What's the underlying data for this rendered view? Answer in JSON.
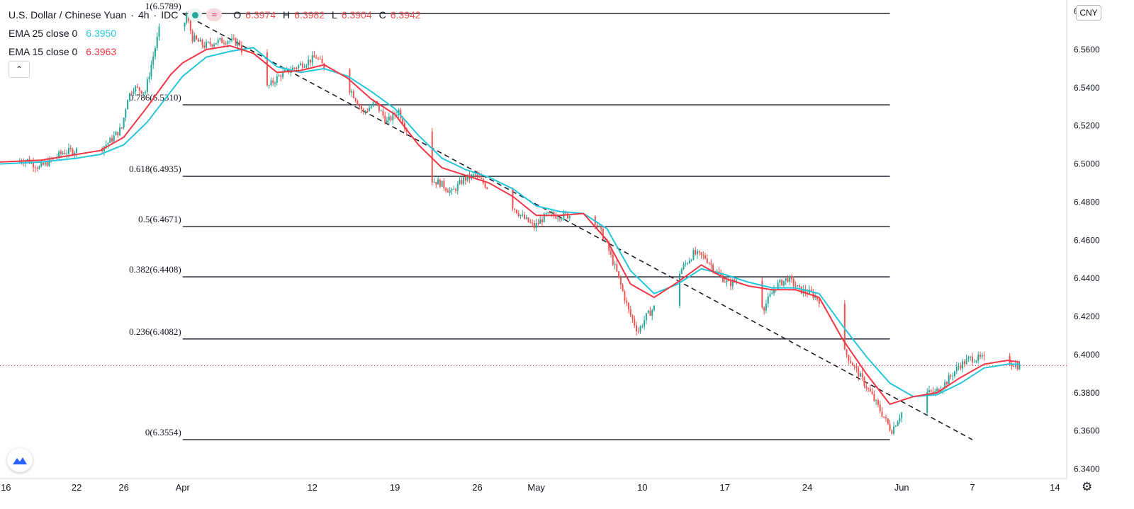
{
  "legend": {
    "symbol": "U.S. Dollar / Chinese Yuan",
    "interval": "4h",
    "exchange": "IDC",
    "separator": "·",
    "ohlc": [
      {
        "label": "O",
        "value": "6.3974"
      },
      {
        "label": "H",
        "value": "6.3982"
      },
      {
        "label": "L",
        "value": "6.3904"
      },
      {
        "label": "C",
        "value": "6.3942"
      }
    ],
    "ema25": {
      "name": "EMA 25 close 0",
      "value": "6.3950",
      "color": "#26c6da"
    },
    "ema15": {
      "name": "EMA 15 close 0",
      "value": "6.3963",
      "color": "#f23645"
    }
  },
  "collapse_glyph": "⌃",
  "currency": "CNY",
  "colors": {
    "up": "#26a69a",
    "down": "#ef5350",
    "grid_line": "#131722",
    "price_line": "#f23645"
  },
  "icons": {
    "logo": "tradingview-logo-icon",
    "settings": "gear-icon"
  },
  "chart_data": {
    "type": "candlestick",
    "y_range": [
      6.335,
      6.583
    ],
    "x_range_days": [
      -15.5,
      75
    ],
    "y_ticks": [
      "6.5800",
      "6.5600",
      "6.5400",
      "6.5200",
      "6.5000",
      "6.4800",
      "6.4600",
      "6.4400",
      "6.4200",
      "6.4000",
      "6.3800",
      "6.3600",
      "6.3400"
    ],
    "x_ticks": [
      {
        "label": "16",
        "day": -15
      },
      {
        "label": "22",
        "day": -9
      },
      {
        "label": "26",
        "day": -5
      },
      {
        "label": "Apr",
        "day": 0
      },
      {
        "label": "12",
        "day": 11
      },
      {
        "label": "19",
        "day": 18
      },
      {
        "label": "26",
        "day": 25
      },
      {
        "label": "May",
        "day": 30
      },
      {
        "label": "10",
        "day": 39
      },
      {
        "label": "17",
        "day": 46
      },
      {
        "label": "24",
        "day": 53
      },
      {
        "label": "Jun",
        "day": 61
      },
      {
        "label": "7",
        "day": 67
      },
      {
        "label": "14",
        "day": 74
      }
    ],
    "current_price": 6.3942,
    "fib_start_day": 0,
    "fib_end_day": 60,
    "fib_levels": [
      {
        "label": "1(6.5789)",
        "ratio": 1,
        "price": 6.5789
      },
      {
        "label": "0.786(6.5310)",
        "ratio": 0.786,
        "price": 6.531
      },
      {
        "label": "0.618(6.4935)",
        "ratio": 0.618,
        "price": 6.4935
      },
      {
        "label": "0.5(6.4671)",
        "ratio": 0.5,
        "price": 6.4671
      },
      {
        "label": "0.382(6.4408)",
        "ratio": 0.382,
        "price": 6.4408
      },
      {
        "label": "0.236(6.4082)",
        "ratio": 0.236,
        "price": 6.4082
      },
      {
        "label": "0(6.3554)",
        "ratio": 0,
        "price": 6.3554
      }
    ],
    "trend_line": {
      "start": {
        "day": 0,
        "price": 6.5789
      },
      "end": {
        "day": 67,
        "price": 6.3554
      }
    },
    "price_path": [
      [
        -15.5,
        6.501
      ],
      [
        -13,
        6.502
      ],
      [
        -12,
        6.498
      ],
      [
        -10,
        6.506
      ],
      [
        -8,
        6.508
      ],
      [
        -7,
        6.507
      ],
      [
        -6,
        6.512
      ],
      [
        -5,
        6.519
      ],
      [
        -4.5,
        6.535
      ],
      [
        -4,
        6.54
      ],
      [
        -3,
        6.538
      ],
      [
        -2.5,
        6.552
      ],
      [
        -1.8,
        6.571
      ],
      [
        -1,
        6.568
      ],
      [
        -0.7,
        6.56
      ],
      [
        0,
        6.567
      ],
      [
        0.5,
        6.578
      ],
      [
        1,
        6.566
      ],
      [
        2,
        6.562
      ],
      [
        3,
        6.564
      ],
      [
        4,
        6.565
      ],
      [
        5,
        6.563
      ],
      [
        6,
        6.544
      ],
      [
        6.8,
        6.537
      ],
      [
        7.5,
        6.541
      ],
      [
        8.5,
        6.547
      ],
      [
        9.5,
        6.55
      ],
      [
        10.5,
        6.553
      ],
      [
        11.5,
        6.556
      ],
      [
        12.5,
        6.548
      ],
      [
        13.5,
        6.545
      ],
      [
        14.5,
        6.538
      ],
      [
        15.5,
        6.527
      ],
      [
        16.5,
        6.532
      ],
      [
        17.5,
        6.522
      ],
      [
        18.5,
        6.528
      ],
      [
        19.5,
        6.513
      ],
      [
        20.5,
        6.497
      ],
      [
        21,
        6.492
      ],
      [
        22,
        6.49
      ],
      [
        23,
        6.485
      ],
      [
        24,
        6.492
      ],
      [
        25,
        6.494
      ],
      [
        26,
        6.488
      ],
      [
        27,
        6.484
      ],
      [
        28,
        6.479
      ],
      [
        29,
        6.472
      ],
      [
        30,
        6.467
      ],
      [
        31,
        6.473
      ],
      [
        32,
        6.473
      ],
      [
        33,
        6.473
      ],
      [
        34,
        6.474
      ],
      [
        34.5,
        6.477
      ],
      [
        35,
        6.472
      ],
      [
        36,
        6.46
      ],
      [
        37,
        6.443
      ],
      [
        38,
        6.423
      ],
      [
        38.8,
        6.412
      ],
      [
        39.5,
        6.42
      ],
      [
        40.5,
        6.427
      ],
      [
        41.5,
        6.434
      ],
      [
        42.5,
        6.445
      ],
      [
        43.5,
        6.453
      ],
      [
        44.5,
        6.451
      ],
      [
        45.5,
        6.443
      ],
      [
        46.5,
        6.437
      ],
      [
        47.5,
        6.44
      ],
      [
        48.5,
        6.432
      ],
      [
        49.5,
        6.425
      ],
      [
        50.5,
        6.436
      ],
      [
        51.5,
        6.44
      ],
      [
        52.5,
        6.434
      ],
      [
        53.5,
        6.432
      ],
      [
        54.5,
        6.427
      ],
      [
        55.5,
        6.406
      ],
      [
        56.5,
        6.4
      ],
      [
        57.5,
        6.39
      ],
      [
        58.5,
        6.38
      ],
      [
        59.5,
        6.369
      ],
      [
        60.3,
        6.36
      ],
      [
        61,
        6.368
      ],
      [
        62,
        6.377
      ],
      [
        63,
        6.38
      ],
      [
        64,
        6.38
      ],
      [
        65,
        6.386
      ],
      [
        66,
        6.394
      ],
      [
        67,
        6.398
      ],
      [
        68,
        6.398
      ],
      [
        69,
        6.395
      ],
      [
        70,
        6.397
      ],
      [
        71,
        6.3942
      ]
    ],
    "ema25_path": [
      [
        -15.5,
        6.5
      ],
      [
        -12,
        6.501
      ],
      [
        -9,
        6.503
      ],
      [
        -7,
        6.505
      ],
      [
        -5,
        6.51
      ],
      [
        -3,
        6.522
      ],
      [
        -1,
        6.538
      ],
      [
        0,
        6.546
      ],
      [
        2,
        6.556
      ],
      [
        4,
        6.559
      ],
      [
        6,
        6.561
      ],
      [
        8,
        6.551
      ],
      [
        10,
        6.548
      ],
      [
        12,
        6.55
      ],
      [
        14,
        6.546
      ],
      [
        16,
        6.538
      ],
      [
        18,
        6.529
      ],
      [
        20,
        6.515
      ],
      [
        22,
        6.503
      ],
      [
        24,
        6.497
      ],
      [
        26,
        6.493
      ],
      [
        28,
        6.487
      ],
      [
        30,
        6.478
      ],
      [
        32,
        6.475
      ],
      [
        34,
        6.474
      ],
      [
        36,
        6.466
      ],
      [
        38,
        6.444
      ],
      [
        40,
        6.432
      ],
      [
        42,
        6.437
      ],
      [
        44,
        6.445
      ],
      [
        46,
        6.442
      ],
      [
        48,
        6.438
      ],
      [
        50,
        6.435
      ],
      [
        52,
        6.435
      ],
      [
        54,
        6.432
      ],
      [
        56,
        6.415
      ],
      [
        58,
        6.399
      ],
      [
        60,
        6.385
      ],
      [
        62,
        6.378
      ],
      [
        64,
        6.379
      ],
      [
        66,
        6.385
      ],
      [
        68,
        6.393
      ],
      [
        70,
        6.395
      ],
      [
        71,
        6.395
      ]
    ],
    "ema15_path": [
      [
        -15.5,
        6.501
      ],
      [
        -12,
        6.502
      ],
      [
        -9,
        6.505
      ],
      [
        -7,
        6.507
      ],
      [
        -5,
        6.514
      ],
      [
        -3,
        6.53
      ],
      [
        -1,
        6.547
      ],
      [
        0,
        6.553
      ],
      [
        2,
        6.56
      ],
      [
        4,
        6.562
      ],
      [
        6,
        6.558
      ],
      [
        8,
        6.548
      ],
      [
        10,
        6.549
      ],
      [
        12,
        6.552
      ],
      [
        14,
        6.545
      ],
      [
        16,
        6.534
      ],
      [
        18,
        6.526
      ],
      [
        20,
        6.51
      ],
      [
        22,
        6.498
      ],
      [
        24,
        6.494
      ],
      [
        26,
        6.49
      ],
      [
        28,
        6.483
      ],
      [
        30,
        6.473
      ],
      [
        32,
        6.473
      ],
      [
        34,
        6.474
      ],
      [
        36,
        6.46
      ],
      [
        38,
        6.437
      ],
      [
        40,
        6.43
      ],
      [
        42,
        6.438
      ],
      [
        44,
        6.447
      ],
      [
        46,
        6.44
      ],
      [
        48,
        6.436
      ],
      [
        50,
        6.434
      ],
      [
        52,
        6.434
      ],
      [
        54,
        6.43
      ],
      [
        56,
        6.408
      ],
      [
        58,
        6.39
      ],
      [
        60,
        6.374
      ],
      [
        62,
        6.378
      ],
      [
        64,
        6.38
      ],
      [
        66,
        6.388
      ],
      [
        68,
        6.395
      ],
      [
        70,
        6.397
      ],
      [
        71,
        6.396
      ]
    ]
  }
}
